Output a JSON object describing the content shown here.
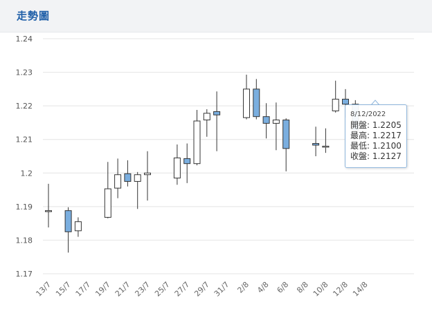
{
  "header": {
    "title": "走勢圖"
  },
  "tooltip": {
    "date": "8/12/2022",
    "open": "開盤: 1.2205",
    "high": "最高: 1.2217",
    "low": "最低: 1.2100",
    "close": "收盤: 1.2127"
  },
  "colors": {
    "up": "#ffffff",
    "down": "#7aaedf",
    "wick": "#333333",
    "grid": "#e4e4e4"
  },
  "chart_data": {
    "type": "candlestick",
    "ylim": [
      1.17,
      1.24
    ],
    "yticks": [
      "1.17",
      "1.18",
      "1.19",
      "1.2",
      "1.21",
      "1.22",
      "1.23",
      "1.24"
    ],
    "x_labels": [
      "13/7",
      "15/7",
      "17/7",
      "19/7",
      "21/7",
      "23/7",
      "25/7",
      "27/7",
      "29/7",
      "31/7",
      "2/8",
      "4/8",
      "6/8",
      "8/8",
      "10/8",
      "12/8",
      "14/8"
    ],
    "candles": [
      {
        "day": 0,
        "open": 1.1888,
        "high": 1.1968,
        "low": 1.1838,
        "close": 1.1888
      },
      {
        "day": 2,
        "open": 1.1888,
        "high": 1.1898,
        "low": 1.1763,
        "close": 1.1825
      },
      {
        "day": 3,
        "open": 1.1828,
        "high": 1.1868,
        "low": 1.181,
        "close": 1.1855
      },
      {
        "day": 6,
        "open": 1.1868,
        "high": 1.2033,
        "low": 1.1865,
        "close": 1.1953
      },
      {
        "day": 7,
        "open": 1.1955,
        "high": 1.2043,
        "low": 1.1925,
        "close": 1.1995
      },
      {
        "day": 8,
        "open": 1.1998,
        "high": 1.2038,
        "low": 1.196,
        "close": 1.1975
      },
      {
        "day": 9,
        "open": 1.1975,
        "high": 1.2003,
        "low": 1.1893,
        "close": 1.1995
      },
      {
        "day": 10,
        "open": 1.1995,
        "high": 1.2065,
        "low": 1.1918,
        "close": 1.2
      },
      {
        "day": 13,
        "open": 1.1985,
        "high": 1.2085,
        "low": 1.1965,
        "close": 1.2045
      },
      {
        "day": 14,
        "open": 1.2043,
        "high": 1.2088,
        "low": 1.197,
        "close": 1.2028
      },
      {
        "day": 15,
        "open": 1.2028,
        "high": 1.2188,
        "low": 1.2023,
        "close": 1.2155
      },
      {
        "day": 16,
        "open": 1.2158,
        "high": 1.219,
        "low": 1.2108,
        "close": 1.2178
      },
      {
        "day": 17,
        "open": 1.2183,
        "high": 1.2243,
        "low": 1.2065,
        "close": 1.2173
      },
      {
        "day": 20,
        "open": 1.2165,
        "high": 1.2293,
        "low": 1.216,
        "close": 1.225
      },
      {
        "day": 21,
        "open": 1.225,
        "high": 1.228,
        "low": 1.216,
        "close": 1.2168
      },
      {
        "day": 22,
        "open": 1.2168,
        "high": 1.2208,
        "low": 1.2103,
        "close": 1.2148
      },
      {
        "day": 23,
        "open": 1.2148,
        "high": 1.221,
        "low": 1.2068,
        "close": 1.2158
      },
      {
        "day": 24,
        "open": 1.2158,
        "high": 1.2163,
        "low": 1.2005,
        "close": 1.2073
      },
      {
        "day": 27,
        "open": 1.2088,
        "high": 1.2138,
        "low": 1.205,
        "close": 1.2083
      },
      {
        "day": 28,
        "open": 1.208,
        "high": 1.2133,
        "low": 1.206,
        "close": 1.208
      },
      {
        "day": 29,
        "open": 1.2185,
        "high": 1.2275,
        "low": 1.218,
        "close": 1.222
      },
      {
        "day": 30,
        "open": 1.222,
        "high": 1.225,
        "low": 1.2165,
        "close": 1.2205
      },
      {
        "day": 31,
        "open": 1.2205,
        "high": 1.2217,
        "low": 1.21,
        "close": 1.2127
      }
    ]
  }
}
